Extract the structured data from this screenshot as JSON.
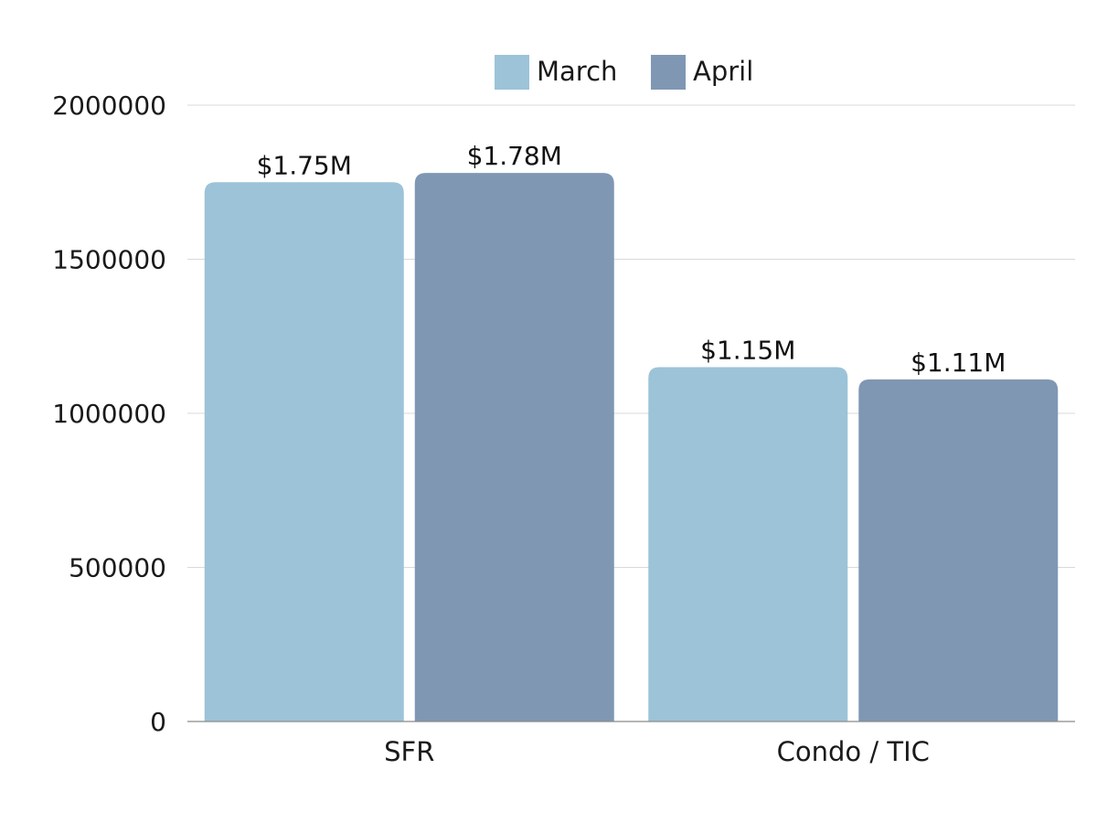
{
  "chart_data": {
    "type": "bar",
    "title": "",
    "xlabel": "",
    "ylabel": "",
    "categories": [
      "SFR",
      "Condo / TIC"
    ],
    "series": [
      {
        "name": "March",
        "color": "#9CC3D8",
        "values": [
          1750000,
          1150000
        ],
        "data_labels": [
          "$1.75M",
          "$1.15M"
        ]
      },
      {
        "name": "April",
        "color": "#7F97B3",
        "values": [
          1780000,
          1110000
        ],
        "data_labels": [
          "$1.78M",
          "$1.11M"
        ]
      }
    ],
    "ylim": [
      0,
      2000000
    ],
    "yticks": [
      0,
      500000,
      1000000,
      1500000,
      2000000
    ],
    "ytick_labels": [
      "0",
      "500000",
      "1000000",
      "1500000",
      "2000000"
    ],
    "grid": true,
    "legend_position": "top-center"
  }
}
